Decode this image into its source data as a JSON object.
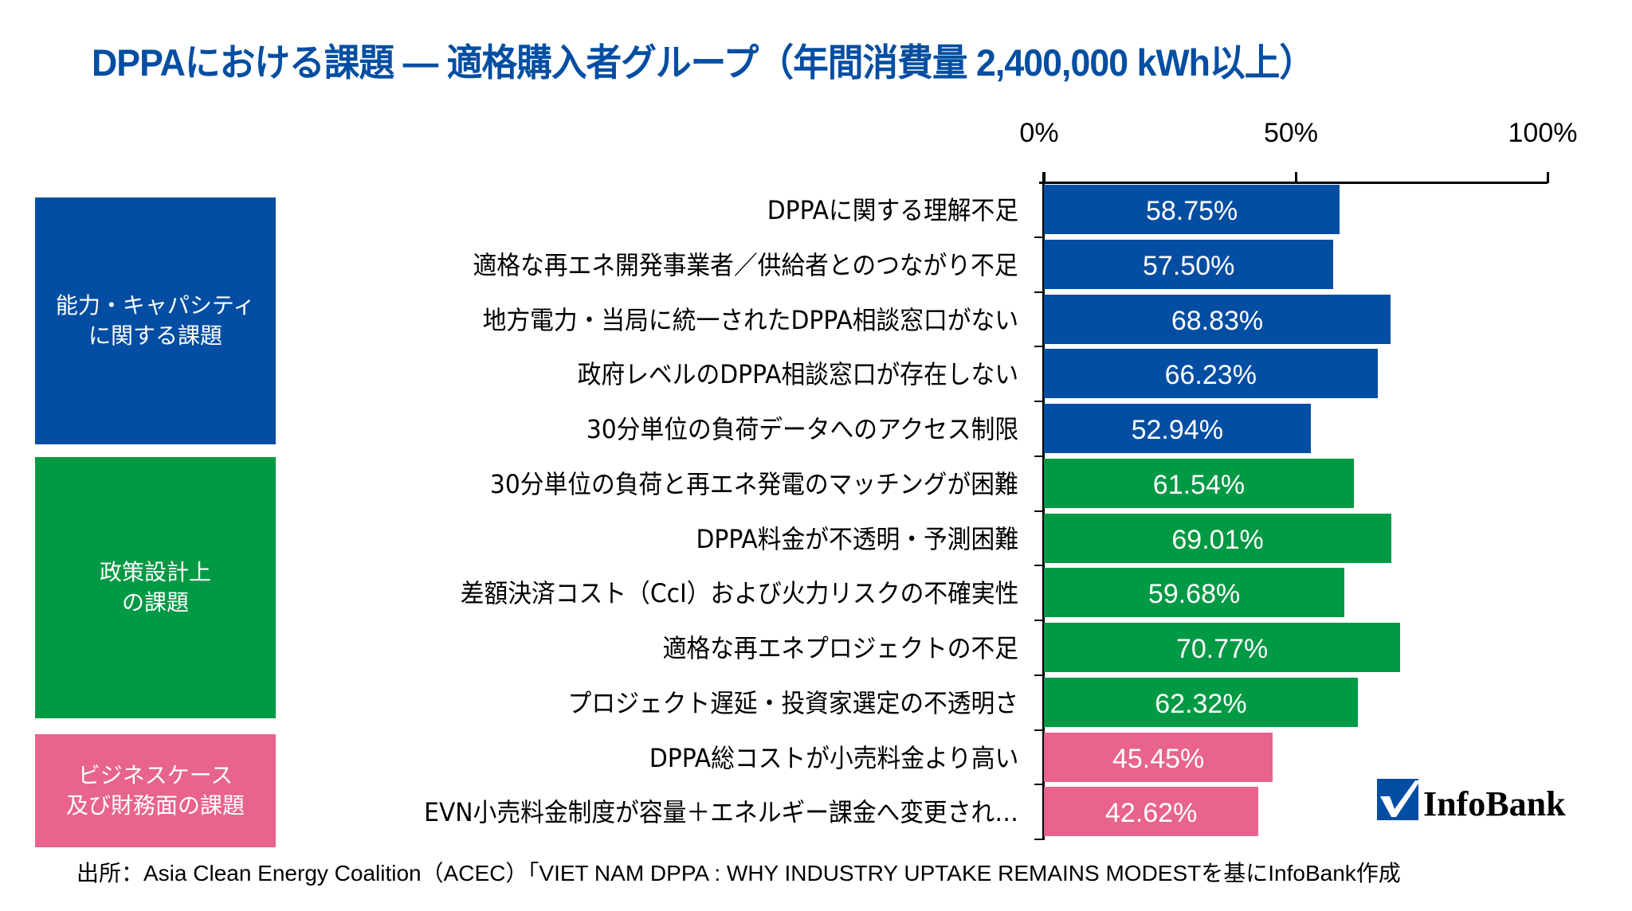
{
  "title": "DPPAにおける課題 — 適格購入者グループ（年間消費量 2,400,000 kWh以上）",
  "groups": [
    {
      "label": "能力・キャパシティ\nに関する課題",
      "color": "#034ea2",
      "rows": [
        0,
        4
      ]
    },
    {
      "label": "政策設計上\nの課題",
      "color": "#009944",
      "rows": [
        5,
        9
      ]
    },
    {
      "label": "ビジネスケース\n及び財務面の課題",
      "color": "#e8648c",
      "rows": [
        10,
        11
      ]
    }
  ],
  "source": "出所：Asia Clean Energy Coalition（ACEC）「VIET NAM DPPA : WHY INDUSTRY UPTAKE REMAINS MODESTを基にInfoBank作成",
  "logo": {
    "text": "InfoBank",
    "icon": "checkmark-icon",
    "color": "#034ea2"
  },
  "chart_data": {
    "type": "bar",
    "orientation": "horizontal",
    "title": "DPPAにおける課題 — 適格購入者グループ（年間消費量 2,400,000 kWh以上）",
    "xlabel": "",
    "ylabel": "",
    "xlim": [
      0,
      100
    ],
    "x_ticks": [
      "0%",
      "50%",
      "100%"
    ],
    "x_axis_position": "top",
    "grid": false,
    "categories": [
      "DPPAに関する理解不足",
      "適格な再エネ開発事業者／供給者とのつながり不足",
      "地方電力・当局に統一されたDPPA相談窓口がない",
      "政府レベルのDPPA相談窓口が存在しない",
      "30分単位の負荷データへのアクセス制限",
      "30分単位の負荷と再エネ発電のマッチングが困難",
      "DPPA料金が不透明・予測困難",
      "差額決済コスト（CcI）および火力リスクの不確実性",
      "適格な再エネプロジェクトの不足",
      "プロジェクト遅延・投資家選定の不透明さ",
      "DPPA総コストが小売料金より高い",
      "EVN小売料金制度が容量＋エネルギー課金へ変更され…"
    ],
    "values": [
      58.75,
      57.5,
      68.83,
      66.23,
      52.94,
      61.54,
      69.01,
      59.68,
      70.77,
      62.32,
      45.45,
      42.62
    ],
    "value_labels": [
      "58.75%",
      "57.50%",
      "68.83%",
      "66.23%",
      "52.94%",
      "61.54%",
      "69.01%",
      "59.68%",
      "70.77%",
      "62.32%",
      "45.45%",
      "42.62%"
    ],
    "bar_colors": [
      "#034ea2",
      "#034ea2",
      "#034ea2",
      "#034ea2",
      "#034ea2",
      "#009944",
      "#009944",
      "#009944",
      "#009944",
      "#009944",
      "#e8648c",
      "#e8648c"
    ],
    "legend": "none"
  }
}
